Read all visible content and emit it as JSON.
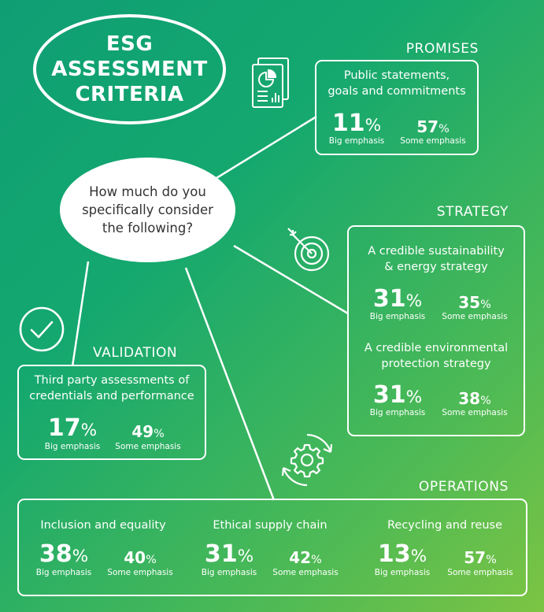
{
  "title": "ESG\nASSESSMENT\nCRITERIA",
  "question": "How much do you\nspecifically consider\nthe following?",
  "big_caption": "Big emphasis",
  "some_caption": "Some emphasis",
  "percent_sign": "%",
  "icons": {
    "promises": "document-chart-icon",
    "strategy": "target-arrow-icon",
    "validation": "checkmark-circle-icon",
    "operations": "gear-cycle-icon"
  },
  "colors": {
    "bg_start": "#0f9e74",
    "bg_end": "#7cc443",
    "line": "#ffffff"
  },
  "promises": {
    "title": "PROMISES",
    "items": [
      {
        "label": "Public statements,\ngoals and commitments",
        "big": "11",
        "some": "57"
      }
    ]
  },
  "strategy": {
    "title": "STRATEGY",
    "items": [
      {
        "label": "A credible sustainability\n& energy strategy",
        "big": "31",
        "some": "35"
      },
      {
        "label": "A credible environmental\nprotection strategy",
        "big": "31",
        "some": "38"
      }
    ]
  },
  "validation": {
    "title": "VALIDATION",
    "items": [
      {
        "label": "Third party assessments of\ncredentials and performance",
        "big": "17",
        "some": "49"
      }
    ]
  },
  "operations": {
    "title": "OPERATIONS",
    "items": [
      {
        "label": "Inclusion and equality",
        "big": "38",
        "some": "40"
      },
      {
        "label": "Ethical supply chain",
        "big": "31",
        "some": "42"
      },
      {
        "label": "Recycling and reuse",
        "big": "13",
        "some": "57"
      }
    ]
  }
}
